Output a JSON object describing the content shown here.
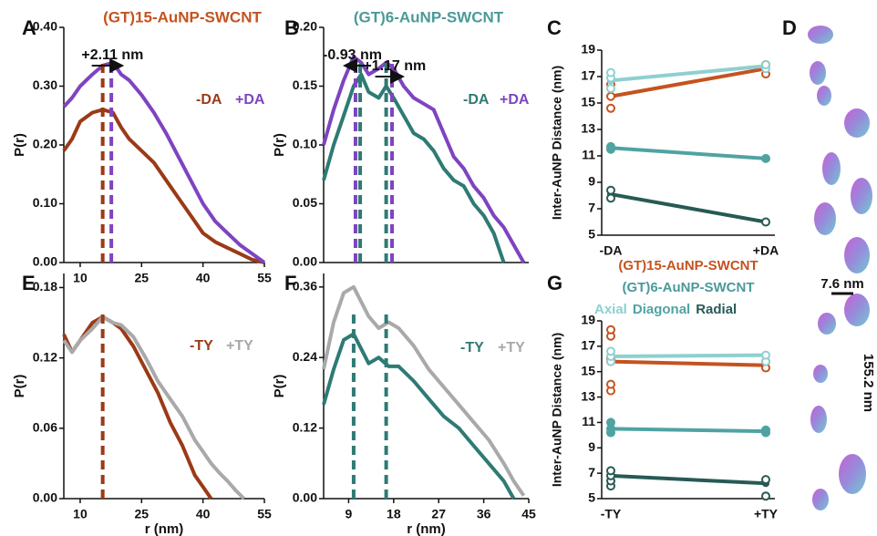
{
  "chart_data": [
    {
      "type": "line",
      "panel": "A",
      "title": "(GT)15-AuNP-SWCNT",
      "title_color": "#c4531f",
      "ylabel": "P(r)",
      "xlim": [
        6,
        55
      ],
      "xticks": [
        10,
        25,
        40,
        55
      ],
      "ylim": [
        0,
        0.4
      ],
      "yticks": [
        {
          "value": 0,
          "label": "0.00"
        },
        {
          "value": 0.1,
          "label": "0.10"
        },
        {
          "value": 0.2,
          "label": "0.20"
        },
        {
          "value": 0.3,
          "label": "0.30"
        },
        {
          "value": 0.4,
          "label": "0.40"
        }
      ],
      "x": [
        6,
        8,
        10,
        13,
        15.5,
        18,
        20,
        22,
        25,
        28,
        31,
        34,
        37,
        40,
        43,
        46,
        49,
        52,
        55
      ],
      "series": [
        {
          "name": "-DA",
          "color": "#9b3a17",
          "values": [
            0.19,
            0.21,
            0.24,
            0.255,
            0.26,
            0.255,
            0.23,
            0.21,
            0.19,
            0.17,
            0.14,
            0.11,
            0.08,
            0.05,
            0.035,
            0.025,
            0.015,
            0.005,
            0
          ]
        },
        {
          "name": "+DA",
          "color": "#7e44c0",
          "values": [
            0.265,
            0.28,
            0.3,
            0.32,
            0.335,
            0.34,
            0.32,
            0.31,
            0.285,
            0.255,
            0.22,
            0.18,
            0.14,
            0.1,
            0.07,
            0.05,
            0.03,
            0.015,
            0
          ]
        }
      ],
      "peaks": [
        {
          "value": 15.5,
          "color": "#9b3a17"
        },
        {
          "value": 17.61,
          "color": "#7e44c0"
        }
      ],
      "shifts": [
        {
          "label": "+2.11 nm",
          "from": 15.5,
          "to": 17.61
        }
      ]
    },
    {
      "type": "line",
      "panel": "B",
      "title": "(GT)6-AuNP-SWCNT",
      "title_color": "#4a9a98",
      "ylabel": "P(r)",
      "xlim": [
        4,
        45
      ],
      "ylim": [
        0,
        0.2
      ],
      "yticks": [
        {
          "value": 0,
          "label": "0.00"
        },
        {
          "value": 0.05,
          "label": "0.05"
        },
        {
          "value": 0.1,
          "label": "0.10"
        },
        {
          "value": 0.15,
          "label": "0.15"
        },
        {
          "value": 0.2,
          "label": "0.20"
        }
      ],
      "x": [
        4,
        6,
        8,
        10,
        11.5,
        13,
        15,
        16.5,
        18,
        20,
        22,
        24,
        26,
        28,
        30,
        32,
        34,
        36,
        38,
        40,
        42,
        44
      ],
      "series": [
        {
          "name": "-DA",
          "color": "#2f7a75",
          "values": [
            0.07,
            0.1,
            0.125,
            0.15,
            0.16,
            0.145,
            0.14,
            0.15,
            0.14,
            0.125,
            0.11,
            0.105,
            0.095,
            0.08,
            0.07,
            0.065,
            0.05,
            0.04,
            0.025,
            0,
            null,
            null
          ]
        },
        {
          "name": "+DA",
          "color": "#7e44c0",
          "values": [
            0.1,
            0.13,
            0.155,
            0.175,
            0.17,
            0.16,
            0.165,
            0.17,
            0.165,
            0.15,
            0.14,
            0.135,
            0.13,
            0.11,
            0.09,
            0.08,
            0.065,
            0.055,
            0.04,
            0.03,
            0.015,
            0
          ]
        }
      ],
      "peaks": [
        {
          "value": 10.37,
          "color": "#7e44c0"
        },
        {
          "value": 11.3,
          "color": "#2f7a75"
        },
        {
          "value": 16.5,
          "color": "#2f7a75"
        },
        {
          "value": 17.67,
          "color": "#7e44c0"
        }
      ],
      "shifts": [
        {
          "label": "-0.93 nm",
          "from": 11.3,
          "to": 10.37
        },
        {
          "label": "+1.17 nm",
          "from": 16.5,
          "to": 17.67
        }
      ]
    },
    {
      "type": "slope",
      "panel": "C",
      "ylabel": "Inter-AuNP Distance (nm)",
      "categories": [
        "-DA",
        "+DA"
      ],
      "ylim": [
        5,
        19
      ],
      "yticks": [
        5,
        7,
        9,
        11,
        13,
        15,
        17,
        19
      ],
      "series": [
        {
          "color": "#c4531f",
          "marker": "open",
          "values": [
            15.5,
            17.6
          ],
          "replicates": [
            [
              14.6,
              15.5,
              16.4
            ],
            [
              17.2,
              17.9
            ]
          ]
        },
        {
          "color": "#8fcfd0",
          "marker": "open",
          "values": [
            16.7,
            17.8
          ],
          "replicates": [
            [
              16.1,
              16.9,
              17.3
            ],
            [
              17.6,
              17.9
            ]
          ]
        },
        {
          "color": "#4fa3a2",
          "marker": "filled",
          "values": [
            11.6,
            10.8
          ],
          "replicates": [
            [
              11.5,
              11.7
            ],
            [
              10.8
            ]
          ]
        },
        {
          "color": "#275a55",
          "marker": "open",
          "values": [
            8.1,
            6.0
          ],
          "replicates": [
            [
              7.8,
              8.4
            ],
            [
              6.0
            ]
          ]
        }
      ]
    },
    {
      "type": "line",
      "panel": "E",
      "ylabel": "P(r)",
      "xlabel": "r (nm)",
      "xlim": [
        6,
        55
      ],
      "xticks": [
        10,
        25,
        40,
        55
      ],
      "ylim": [
        0,
        0.192
      ],
      "yticks": [
        {
          "value": 0,
          "label": "0.00"
        },
        {
          "value": 0.06,
          "label": "0.06"
        },
        {
          "value": 0.12,
          "label": "0.12"
        },
        {
          "value": 0.18,
          "label": "0.18"
        }
      ],
      "x": [
        6,
        8,
        10,
        13,
        15.5,
        18,
        20,
        23,
        26,
        29,
        32,
        35,
        38,
        40,
        42,
        44,
        46,
        48,
        50
      ],
      "series": [
        {
          "name": "-TY",
          "color": "#9b3a17",
          "values": [
            0.14,
            0.125,
            0.135,
            0.15,
            0.155,
            0.15,
            0.145,
            0.13,
            0.11,
            0.09,
            0.065,
            0.045,
            0.02,
            0.01,
            0,
            null,
            null,
            null,
            null
          ]
        },
        {
          "name": "+TY",
          "color": "#a9a9a9",
          "values": [
            0.135,
            0.125,
            0.135,
            0.145,
            0.155,
            0.15,
            0.148,
            0.138,
            0.12,
            0.1,
            0.085,
            0.07,
            0.05,
            0.04,
            0.03,
            0.022,
            0.015,
            0.007,
            0
          ]
        }
      ],
      "peaks": [
        {
          "value": 15.5,
          "color": "#9b3a17"
        }
      ]
    },
    {
      "type": "line",
      "panel": "F",
      "ylabel": "P(r)",
      "xlabel": "r (nm)",
      "xlim": [
        4,
        45
      ],
      "xticks": [
        9,
        18,
        27,
        36,
        45
      ],
      "ylim": [
        0,
        0.383
      ],
      "yticks": [
        {
          "value": 0,
          "label": "0.00"
        },
        {
          "value": 0.12,
          "label": "0.12"
        },
        {
          "value": 0.24,
          "label": "0.24"
        },
        {
          "value": 0.36,
          "label": "0.36"
        }
      ],
      "x": [
        4,
        6,
        8,
        10,
        13,
        15,
        17,
        19,
        22,
        25,
        28,
        31,
        34,
        37,
        40,
        42,
        44
      ],
      "series": [
        {
          "name": "-TY",
          "color": "#2f7a75",
          "values": [
            0.16,
            0.22,
            0.27,
            0.28,
            0.23,
            0.24,
            0.225,
            0.225,
            0.2,
            0.17,
            0.14,
            0.12,
            0.09,
            0.06,
            0.03,
            0,
            null
          ]
        },
        {
          "name": "+TY",
          "color": "#a9a9a9",
          "values": [
            0.22,
            0.3,
            0.35,
            0.36,
            0.31,
            0.29,
            0.3,
            0.29,
            0.26,
            0.22,
            0.19,
            0.16,
            0.13,
            0.1,
            0.06,
            0.03,
            0.005
          ]
        }
      ],
      "peaks": [
        {
          "value": 10,
          "color": "#2f7a75"
        },
        {
          "value": 16.5,
          "color": "#2f7a75"
        }
      ]
    },
    {
      "type": "slope",
      "panel": "G",
      "ylabel": "Inter-AuNP Distance (nm)",
      "categories": [
        "-TY",
        "+TY"
      ],
      "ylim": [
        5,
        19
      ],
      "yticks": [
        5,
        7,
        9,
        11,
        13,
        15,
        17,
        19
      ],
      "legend_heading": "(GT)6-AuNP-SWCNT",
      "legend_heading_color": "#4a9a98",
      "series": [
        {
          "name": "(GT)15-AuNP-SWCNT",
          "color": "#c4531f",
          "marker": "open",
          "values": [
            15.8,
            15.5
          ],
          "replicates": [
            [
              13.5,
              14.0,
              15.8,
              16.0,
              17.8,
              18.3
            ],
            [
              15.3,
              15.8
            ]
          ]
        },
        {
          "name": "Axial",
          "color": "#8fcfd0",
          "marker": "open",
          "values": [
            16.2,
            16.3
          ],
          "replicates": [
            [
              15.8,
              16.2,
              16.6
            ],
            [
              15.8,
              16.3
            ]
          ]
        },
        {
          "name": "Diagonal",
          "color": "#4fa3a2",
          "marker": "filled",
          "values": [
            10.5,
            10.3
          ],
          "replicates": [
            [
              10.2,
              10.5,
              11.0
            ],
            [
              10.2,
              10.4
            ]
          ]
        },
        {
          "name": "Radial",
          "color": "#275a55",
          "marker": "open",
          "values": [
            6.8,
            6.2
          ],
          "replicates": [
            [
              6.0,
              6.4,
              6.8,
              7.2
            ],
            [
              5.2,
              6.5
            ]
          ]
        }
      ]
    }
  ],
  "panel_d": {
    "label": "D",
    "scale_bar": "7.6 nm",
    "length": "155.2 nm"
  }
}
